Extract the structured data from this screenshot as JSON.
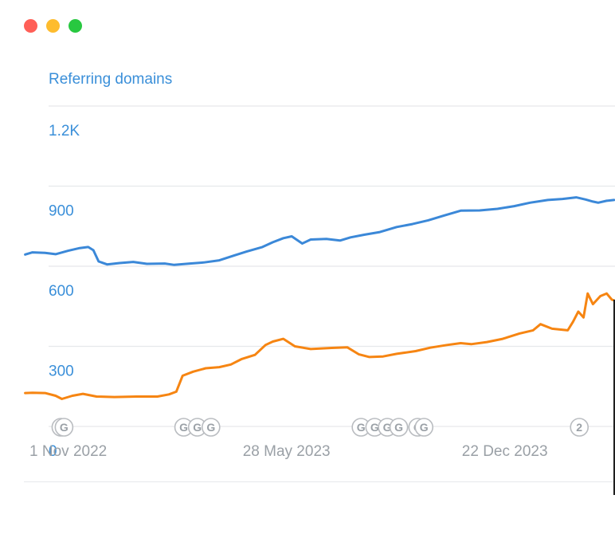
{
  "window": {
    "controls": [
      "close",
      "minimize",
      "maximize"
    ]
  },
  "chart_data": {
    "type": "line",
    "title": "Referring domains",
    "xlabel": "",
    "ylabel": "",
    "ylim": [
      0,
      1200
    ],
    "y_ticks": [
      {
        "value": 0,
        "label": "0"
      },
      {
        "value": 300,
        "label": "300"
      },
      {
        "value": 600,
        "label": "600"
      },
      {
        "value": 900,
        "label": "900"
      },
      {
        "value": 1200,
        "label": "1.2K"
      }
    ],
    "xlim": [
      "2022-08-28",
      "2024-04-05"
    ],
    "x_ticks": [
      {
        "date": "2022-11-01",
        "label": "1 Nov 2022"
      },
      {
        "date": "2023-05-28",
        "label": "28 May 2023"
      },
      {
        "date": "2023-12-22",
        "label": "22 Dec 2023"
      }
    ],
    "grid": true,
    "colors": {
      "blue": "#3b88d8",
      "orange": "#f68512"
    },
    "series": [
      {
        "color": "#3b88d8",
        "points": [
          [
            "2022-09-21",
            644
          ],
          [
            "2022-09-28",
            652
          ],
          [
            "2022-10-10",
            650
          ],
          [
            "2022-10-20",
            645
          ],
          [
            "2022-11-01",
            658
          ],
          [
            "2022-11-12",
            668
          ],
          [
            "2022-11-20",
            672
          ],
          [
            "2022-11-25",
            660
          ],
          [
            "2022-11-30",
            618
          ],
          [
            "2022-12-08",
            607
          ],
          [
            "2022-12-20",
            612
          ],
          [
            "2023-01-02",
            616
          ],
          [
            "2023-01-15",
            609
          ],
          [
            "2023-02-01",
            610
          ],
          [
            "2023-02-10",
            605
          ],
          [
            "2023-02-25",
            610
          ],
          [
            "2023-03-10",
            614
          ],
          [
            "2023-03-25",
            622
          ],
          [
            "2023-04-08",
            640
          ],
          [
            "2023-04-20",
            655
          ],
          [
            "2023-05-05",
            672
          ],
          [
            "2023-05-15",
            690
          ],
          [
            "2023-05-25",
            705
          ],
          [
            "2023-06-02",
            712
          ],
          [
            "2023-06-12",
            685
          ],
          [
            "2023-06-20",
            700
          ],
          [
            "2023-07-05",
            702
          ],
          [
            "2023-07-18",
            696
          ],
          [
            "2023-07-28",
            708
          ],
          [
            "2023-08-10",
            718
          ],
          [
            "2023-08-25",
            728
          ],
          [
            "2023-09-10",
            747
          ],
          [
            "2023-09-25",
            758
          ],
          [
            "2023-10-10",
            772
          ],
          [
            "2023-10-25",
            790
          ],
          [
            "2023-11-10",
            808
          ],
          [
            "2023-11-28",
            809
          ],
          [
            "2023-12-15",
            815
          ],
          [
            "2023-12-31",
            825
          ],
          [
            "2024-01-15",
            838
          ],
          [
            "2024-02-01",
            848
          ],
          [
            "2024-02-15",
            852
          ],
          [
            "2024-02-28",
            858
          ],
          [
            "2024-03-08",
            850
          ],
          [
            "2024-03-15",
            842
          ],
          [
            "2024-03-20",
            838
          ],
          [
            "2024-03-28",
            845
          ],
          [
            "2024-04-04",
            848
          ]
        ]
      },
      {
        "color": "#f68512",
        "points": [
          [
            "2022-09-21",
            125
          ],
          [
            "2022-09-28",
            126
          ],
          [
            "2022-10-10",
            125
          ],
          [
            "2022-10-20",
            115
          ],
          [
            "2022-10-26",
            103
          ],
          [
            "2022-11-05",
            115
          ],
          [
            "2022-11-15",
            122
          ],
          [
            "2022-11-28",
            112
          ],
          [
            "2022-12-15",
            110
          ],
          [
            "2023-01-05",
            112
          ],
          [
            "2023-01-25",
            112
          ],
          [
            "2023-02-05",
            120
          ],
          [
            "2023-02-12",
            130
          ],
          [
            "2023-02-18",
            190
          ],
          [
            "2023-02-28",
            205
          ],
          [
            "2023-03-12",
            218
          ],
          [
            "2023-03-25",
            222
          ],
          [
            "2023-04-05",
            232
          ],
          [
            "2023-04-15",
            252
          ],
          [
            "2023-04-28",
            268
          ],
          [
            "2023-05-08",
            305
          ],
          [
            "2023-05-15",
            318
          ],
          [
            "2023-05-25",
            328
          ],
          [
            "2023-06-05",
            300
          ],
          [
            "2023-06-20",
            290
          ],
          [
            "2023-07-10",
            294
          ],
          [
            "2023-07-25",
            296
          ],
          [
            "2023-08-05",
            270
          ],
          [
            "2023-08-15",
            260
          ],
          [
            "2023-08-28",
            262
          ],
          [
            "2023-09-10",
            272
          ],
          [
            "2023-09-28",
            282
          ],
          [
            "2023-10-12",
            295
          ],
          [
            "2023-10-28",
            305
          ],
          [
            "2023-11-10",
            312
          ],
          [
            "2023-11-20",
            308
          ],
          [
            "2023-12-05",
            316
          ],
          [
            "2023-12-20",
            328
          ],
          [
            "2024-01-05",
            348
          ],
          [
            "2024-01-18",
            360
          ],
          [
            "2024-01-25",
            383
          ],
          [
            "2024-02-05",
            366
          ],
          [
            "2024-02-20",
            360
          ],
          [
            "2024-02-25",
            392
          ],
          [
            "2024-03-01",
            430
          ],
          [
            "2024-03-06",
            408
          ],
          [
            "2024-03-10",
            498
          ],
          [
            "2024-03-15",
            458
          ],
          [
            "2024-03-22",
            488
          ],
          [
            "2024-03-28",
            498
          ],
          [
            "2024-04-02",
            475
          ],
          [
            "2024-04-04",
            472
          ]
        ]
      }
    ],
    "annotations": [
      {
        "date": "2022-10-25",
        "label": "G"
      },
      {
        "date": "2022-10-28",
        "label": "G"
      },
      {
        "date": "2023-02-19",
        "label": "G"
      },
      {
        "date": "2023-03-04",
        "label": "G"
      },
      {
        "date": "2023-03-17",
        "label": "G"
      },
      {
        "date": "2023-08-07",
        "label": "G"
      },
      {
        "date": "2023-08-20",
        "label": "G"
      },
      {
        "date": "2023-09-01",
        "label": "G"
      },
      {
        "date": "2023-09-12",
        "label": "G"
      },
      {
        "date": "2023-09-30",
        "label": "G"
      },
      {
        "date": "2023-10-06",
        "label": "G"
      },
      {
        "date": "2024-03-02",
        "label": "2"
      }
    ]
  }
}
